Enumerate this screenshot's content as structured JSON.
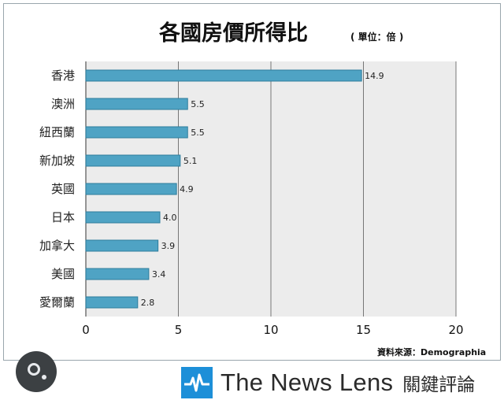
{
  "chart_data": {
    "type": "bar",
    "orientation": "horizontal",
    "title": "各國房價所得比",
    "unit_note": "( 單位：倍 )",
    "categories": [
      "香港",
      "澳洲",
      "紐西蘭",
      "新加坡",
      "英國",
      "日本",
      "加拿大",
      "美國",
      "愛爾蘭"
    ],
    "values": [
      14.9,
      5.5,
      5.5,
      5.1,
      4.9,
      4.0,
      3.9,
      3.4,
      2.8
    ],
    "value_labels": [
      "14.9",
      "5.5",
      "5.5",
      "5.1",
      "4.9",
      "4.0",
      "3.9",
      "3.4",
      "2.8"
    ],
    "xlim": [
      0,
      20
    ],
    "xticks": [
      "0",
      "5",
      "10",
      "15",
      "20"
    ],
    "grid": true,
    "source": "資料來源：Demographia",
    "colors": {
      "bar": "#4fa3c4",
      "bar_stroke": "#2e7c9c",
      "plot_bg": "#ececec"
    }
  },
  "footer": {
    "brand_name": "The News Lens",
    "brand_cn": "關鍵評論",
    "logo_color": "#1d8fd8"
  },
  "overlay": {
    "icon": "lens-search-icon"
  }
}
